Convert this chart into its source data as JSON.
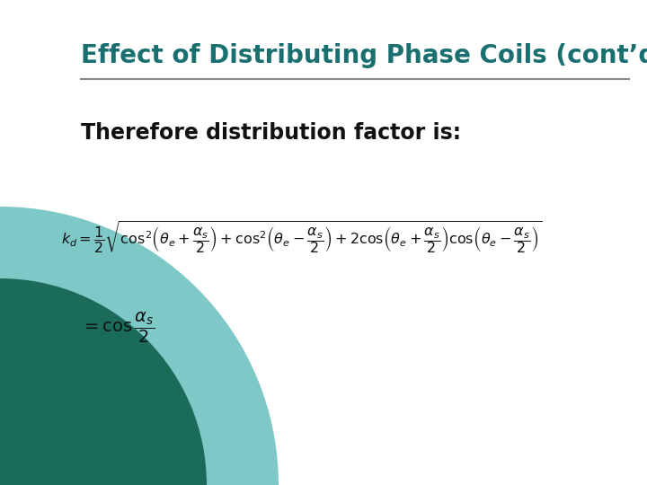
{
  "title": "Effect of Distributing Phase Coils (cont’d)",
  "title_color": "#1a7070",
  "slide_bg": "#ffffff",
  "teal_dark": "#1a6b5a",
  "teal_light": "#7ec8c8",
  "subtitle": "Therefore distribution factor is:",
  "line_color": "#888888",
  "text_color": "#111111"
}
